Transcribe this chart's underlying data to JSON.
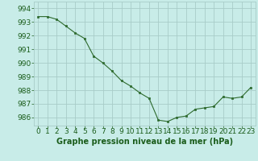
{
  "x": [
    0,
    1,
    2,
    3,
    4,
    5,
    6,
    7,
    8,
    9,
    10,
    11,
    12,
    13,
    14,
    15,
    16,
    17,
    18,
    19,
    20,
    21,
    22,
    23
  ],
  "y": [
    993.4,
    993.4,
    993.2,
    992.7,
    992.2,
    991.8,
    990.5,
    990.0,
    989.4,
    988.7,
    988.3,
    987.8,
    987.4,
    985.8,
    985.7,
    986.0,
    986.1,
    986.6,
    986.7,
    986.8,
    987.5,
    987.4,
    987.5,
    988.2
  ],
  "line_color": "#2d6a2d",
  "marker_color": "#2d6a2d",
  "bg_color": "#c8ece8",
  "grid_color": "#a8ccc8",
  "title": "Graphe pression niveau de la mer (hPa)",
  "xlabel_ticks": [
    "0",
    "1",
    "2",
    "3",
    "4",
    "5",
    "6",
    "7",
    "8",
    "9",
    "10",
    "11",
    "12",
    "13",
    "14",
    "15",
    "16",
    "17",
    "18",
    "19",
    "20",
    "21",
    "22",
    "23"
  ],
  "ytick_labels": [
    "986",
    "987",
    "988",
    "989",
    "990",
    "991",
    "992",
    "993",
    "994"
  ],
  "ylim": [
    985.4,
    994.5
  ],
  "xlim": [
    -0.5,
    23.5
  ],
  "title_color": "#1a5c1a",
  "tick_color": "#1a5c1a",
  "title_fontsize": 7.0,
  "tick_fontsize": 6.5
}
